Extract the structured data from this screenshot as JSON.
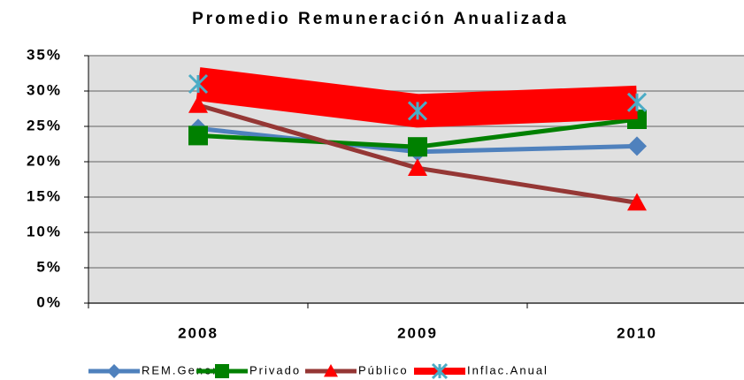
{
  "chart_data": {
    "type": "line",
    "title": "Promedio Remuneración Anualizada",
    "categories": [
      "2008",
      "2009",
      "2010"
    ],
    "series": [
      {
        "name": "REM.General",
        "color": "#4f81bd",
        "marker": "diamond",
        "values": [
          24.7,
          21.4,
          22.2
        ]
      },
      {
        "name": "Privado",
        "color": "#008000",
        "marker": "square",
        "values": [
          23.7,
          22.1,
          26.0
        ]
      },
      {
        "name": "Público",
        "color": "#953735",
        "marker": "triangle",
        "marker_color": "#ff0000",
        "values": [
          28.0,
          19.1,
          14.2
        ]
      },
      {
        "name": "Inflac.Anual",
        "color": "#ff0000",
        "marker": "x",
        "marker_color": "#4bacc6",
        "values": [
          31.0,
          27.2,
          28.4
        ]
      }
    ],
    "ylim": [
      0,
      35
    ],
    "yticks": [
      {
        "value": 0,
        "label": "0%"
      },
      {
        "value": 5,
        "label": "5%"
      },
      {
        "value": 10,
        "label": "10%"
      },
      {
        "value": 15,
        "label": "15%"
      },
      {
        "value": 20,
        "label": "20%"
      },
      {
        "value": 25,
        "label": "25%"
      },
      {
        "value": 30,
        "label": "30%"
      },
      {
        "value": 35,
        "label": "35%"
      }
    ],
    "grid": true,
    "legend": "bottom"
  }
}
